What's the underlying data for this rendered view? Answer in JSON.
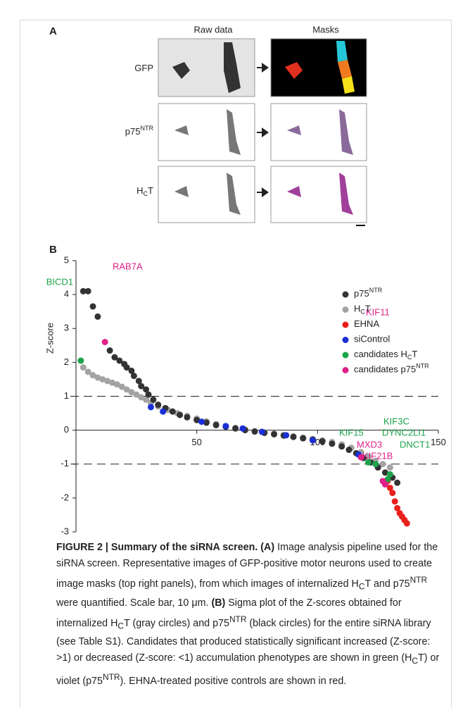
{
  "panel_a": {
    "label": "A",
    "columns": [
      "Raw data",
      "Masks"
    ],
    "rows": [
      {
        "label": [
          "GFP"
        ]
      },
      {
        "label": [
          "p75",
          "NTR"
        ]
      },
      {
        "label": [
          "H",
          "C",
          "T"
        ]
      }
    ]
  },
  "panel_b_label": "B",
  "chart_data": {
    "type": "scatter",
    "ylabel": "Z-score",
    "xlim": [
      0,
      150
    ],
    "xticks": [
      50,
      100,
      150
    ],
    "ylim": [
      -3,
      5
    ],
    "yticks": [
      -3,
      -2,
      -1,
      0,
      1,
      2,
      3,
      4,
      5
    ],
    "hlines": [
      1,
      -1
    ],
    "series": [
      {
        "name": [
          "p75",
          "NTR"
        ],
        "color": "#333333",
        "x": [
          3,
          5,
          7,
          9,
          14,
          16,
          18,
          20,
          21,
          23,
          24,
          26,
          27,
          29,
          30,
          32,
          34,
          37,
          40,
          43,
          46,
          50,
          54,
          58,
          62,
          66,
          70,
          74,
          78,
          82,
          86,
          90,
          94,
          98,
          102,
          106,
          110,
          113,
          116,
          119,
          122,
          125,
          128,
          131,
          133
        ],
        "values": [
          4.1,
          4.1,
          3.65,
          3.35,
          2.35,
          2.15,
          2.05,
          1.95,
          1.85,
          1.75,
          1.6,
          1.45,
          1.3,
          1.2,
          1.05,
          0.9,
          0.75,
          0.65,
          0.55,
          0.45,
          0.38,
          0.3,
          0.22,
          0.15,
          0.1,
          0.05,
          0.0,
          -0.04,
          -0.08,
          -0.12,
          -0.16,
          -0.2,
          -0.24,
          -0.28,
          -0.33,
          -0.4,
          -0.48,
          -0.58,
          -0.68,
          -0.82,
          -0.95,
          -1.1,
          -1.25,
          -1.4,
          -1.55
        ]
      },
      {
        "name": [
          "H",
          "C",
          "T"
        ],
        "color": "#a3a3a3",
        "x": [
          3,
          5,
          7,
          9,
          11,
          13,
          15,
          17,
          19,
          21,
          23,
          25,
          27,
          29,
          31,
          34,
          38,
          42,
          46,
          50,
          54,
          58,
          62,
          66,
          70,
          74,
          78,
          82,
          86,
          90,
          94,
          98,
          102,
          106,
          110,
          114,
          118,
          121,
          124,
          127,
          130
        ],
        "values": [
          1.85,
          1.72,
          1.62,
          1.55,
          1.5,
          1.45,
          1.4,
          1.35,
          1.28,
          1.2,
          1.12,
          1.05,
          0.97,
          0.9,
          0.8,
          0.7,
          0.6,
          0.5,
          0.42,
          0.34,
          0.26,
          0.18,
          0.12,
          0.07,
          0.02,
          -0.03,
          -0.07,
          -0.1,
          -0.14,
          -0.18,
          -0.22,
          -0.26,
          -0.3,
          -0.35,
          -0.42,
          -0.52,
          -0.65,
          -0.78,
          -0.9,
          -1.0,
          -1.1
        ]
      },
      {
        "name": [
          "EHNA"
        ],
        "color": "#e8201c",
        "x": [
          129,
          130,
          131,
          132,
          133,
          134,
          135,
          136,
          137
        ],
        "values": [
          -1.5,
          -1.7,
          -1.85,
          -2.1,
          -2.3,
          -2.45,
          -2.55,
          -2.65,
          -2.75
        ]
      },
      {
        "name": [
          "siControl"
        ],
        "color": "#1a2fd6",
        "x": [
          31,
          36,
          52,
          62,
          69,
          77,
          87,
          98,
          117
        ],
        "values": [
          0.68,
          0.55,
          0.25,
          0.12,
          0.05,
          -0.05,
          -0.15,
          -0.3,
          -0.72
        ]
      },
      {
        "name": [
          "candidates H",
          "C",
          "T"
        ],
        "color": "#1ba34a",
        "x": [
          2,
          121,
          124,
          129,
          130
        ],
        "values": [
          2.05,
          -0.95,
          -1.0,
          -1.45,
          -1.3
        ],
        "labels": [
          "BICD1",
          "KIF15",
          "KIF3C",
          "DNCT1",
          "DYNC2LI1"
        ]
      },
      {
        "name": [
          "candidates p75",
          "NTR"
        ],
        "color": "#e0208a",
        "x": [
          12,
          118,
          127,
          128
        ],
        "values": [
          2.6,
          -0.8,
          -1.5,
          -1.6
        ],
        "labels": [
          "RAB7A",
          "KIF11",
          "MXD3",
          "KIF21B"
        ]
      }
    ]
  },
  "caption": {
    "segments": [
      "FIGURE 2 | Summary of the siRNA screen. (A)",
      " Image analysis pipeline used for the siRNA screen. Representative images of GFP-positive motor neurons used to create image masks (top right panels), from which images of internalized H",
      "C",
      "T and p75",
      "NTR",
      " were quantified. Scale bar, 10 μm. ",
      "(B)",
      " Sigma plot of the Z-scores obtained for internalized H",
      "C",
      "T (gray circles) and p75",
      "NTR",
      " (black circles) for the entire siRNA library (see Table S1). Candidates that produced statistically significant increased (Z-score: >1) or decreased (Z-score: <1) accumulation phenotypes are shown in green (H",
      "C",
      "T) or violet (p75",
      "NTR",
      "). EHNA-treated positive controls are shown in red."
    ]
  }
}
